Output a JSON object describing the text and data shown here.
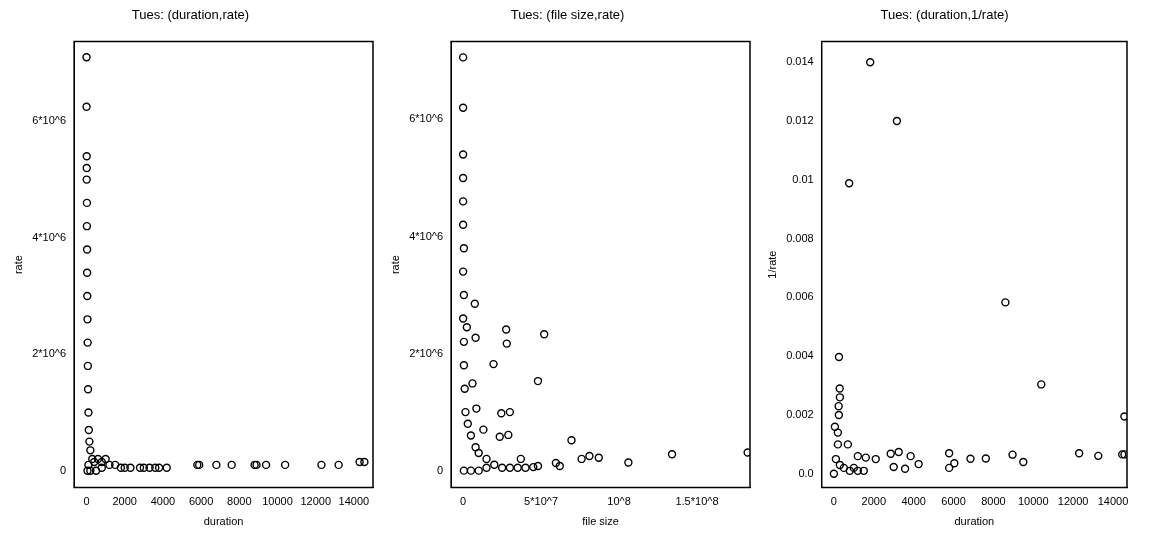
{
  "chart_data": [
    {
      "type": "scatter",
      "title": "Tues: (duration,rate)",
      "xlabel": "duration",
      "ylabel": "rate",
      "color": "#000000",
      "marker": "circle",
      "grid": false,
      "legend": false,
      "x": [
        0,
        0,
        10,
        10,
        10,
        20,
        20,
        30,
        30,
        40,
        50,
        60,
        70,
        80,
        100,
        120,
        150,
        200,
        300,
        400,
        600,
        800,
        1000,
        1200,
        1500,
        1800,
        2000,
        2300,
        2800,
        3000,
        3300,
        3600,
        3800,
        4200,
        5800,
        5900,
        6800,
        7600,
        8800,
        8900,
        9400,
        10400,
        12300,
        13200,
        14300,
        14550,
        50,
        200,
        500,
        800,
        100
      ],
      "values": [
        7100000,
        6250000,
        5400000,
        5200000,
        5000000,
        4600000,
        4200000,
        3800000,
        3400000,
        3000000,
        2600000,
        2200000,
        1800000,
        1400000,
        1000000,
        700000,
        500000,
        350000,
        200000,
        150000,
        200000,
        150000,
        200000,
        100000,
        100000,
        50000,
        50000,
        50000,
        50000,
        50000,
        50000,
        50000,
        50000,
        50000,
        100000,
        100000,
        100000,
        100000,
        100000,
        100000,
        100000,
        100000,
        100000,
        100000,
        150000,
        150000,
        0,
        0,
        0,
        50000,
        100000
      ],
      "xlim": [
        -650,
        15000
      ],
      "ylim": [
        -290000,
        7370000
      ],
      "xticks": [
        0,
        2000,
        4000,
        6000,
        8000,
        10000,
        12000,
        14000
      ],
      "yticks": [
        0,
        {
          "value": 2000000,
          "label": "2*10^6"
        },
        {
          "value": 4000000,
          "label": "4*10^6"
        },
        {
          "value": 6000000,
          "label": "6*10^6"
        }
      ]
    },
    {
      "type": "scatter",
      "title": "Tues: (file size,rate)",
      "xlabel": "file size",
      "ylabel": "rate",
      "color": "#000000",
      "marker": "circle",
      "grid": false,
      "legend": false,
      "x": [
        0,
        0,
        0,
        0,
        0,
        0,
        500000,
        0,
        500000,
        0,
        500000,
        500000,
        1000000,
        1500000,
        3000000,
        5000000,
        8000000,
        10000000,
        13000000,
        15000000,
        20000000,
        25000000,
        30000000,
        35000000,
        37000000,
        40000000,
        500000,
        5000000,
        10000000,
        15000000,
        7500000,
        2400000,
        8000000,
        27600000,
        28000000,
        52000000,
        19500000,
        48000000,
        6000000,
        8500000,
        24500000,
        30000000,
        23500000,
        29000000,
        69500000,
        76000000,
        81000000,
        87000000,
        106000000,
        134000000,
        182500000,
        59500000,
        62000000,
        48000000,
        45000000
      ],
      "values": [
        7060000,
        6200000,
        5400000,
        5000000,
        4600000,
        4200000,
        3800000,
        3400000,
        3000000,
        2600000,
        2200000,
        1800000,
        1400000,
        1000000,
        800000,
        600000,
        400000,
        300000,
        700000,
        200000,
        100000,
        50000,
        50000,
        50000,
        200000,
        50000,
        0,
        0,
        0,
        50000,
        2850000,
        2450000,
        2270000,
        2410000,
        2170000,
        2330000,
        1820000,
        1530000,
        1490000,
        1060000,
        980000,
        1000000,
        580000,
        610000,
        520000,
        200000,
        250000,
        220000,
        140000,
        280000,
        310000,
        130000,
        80000,
        80000,
        60000
      ],
      "xlim": [
        -7700000,
        184000000
      ],
      "ylim": [
        -290000,
        7330000
      ],
      "xticks": [
        0,
        {
          "value": 50000000,
          "label": "5*10^7"
        },
        {
          "value": 100000000,
          "label": "10^8"
        },
        {
          "value": 150000000,
          "label": "1.5*10^8"
        }
      ],
      "yticks": [
        0,
        {
          "value": 2000000,
          "label": "2*10^6"
        },
        {
          "value": 4000000,
          "label": "4*10^6"
        },
        {
          "value": 6000000,
          "label": "6*10^6"
        }
      ]
    },
    {
      "type": "scatter",
      "title": "Tues: (duration,1/rate)",
      "xlabel": "duration",
      "ylabel": "1/rate",
      "color": "#000000",
      "marker": "circle",
      "grid": false,
      "legend": false,
      "x": [
        1820,
        3160,
        765,
        8600,
        10400,
        14570,
        255,
        290,
        300,
        240,
        250,
        50,
        200,
        700,
        1200,
        1600,
        2100,
        2850,
        3000,
        3250,
        3570,
        3850,
        4250,
        5780,
        5780,
        6040,
        6850,
        7620,
        8960,
        9500,
        12300,
        13260,
        14460,
        14570,
        0,
        100,
        200,
        300,
        500,
        800,
        1000,
        1200,
        1500
      ],
      "values": [
        0.014,
        0.012,
        0.00988,
        0.00583,
        0.00304,
        0.00195,
        0.00397,
        0.0029,
        0.0026,
        0.0023,
        0.002,
        0.0016,
        0.0014,
        0.001,
        0.0006,
        0.00055,
        0.0005,
        0.00068,
        0.00023,
        0.00074,
        0.00017,
        0.0006,
        0.00033,
        0.0007,
        0.0002,
        0.00036,
        0.00051,
        0.00052,
        0.00065,
        0.0004,
        0.0007,
        0.00061,
        0.00066,
        0.00066,
        0,
        0.0005,
        0.001,
        0.0003,
        0.0002,
        0.0001,
        0.0002,
        0.0001,
        0.0001
      ],
      "xlim": [
        -610,
        14700
      ],
      "ylim": [
        -0.00047,
        0.0147
      ],
      "xticks": [
        0,
        2000,
        4000,
        6000,
        8000,
        10000,
        12000,
        14000
      ],
      "yticks": [
        {
          "value": 0,
          "label": "0.0"
        },
        0.002,
        0.004,
        0.006,
        0.008,
        0.01,
        0.012,
        0.014
      ]
    }
  ]
}
